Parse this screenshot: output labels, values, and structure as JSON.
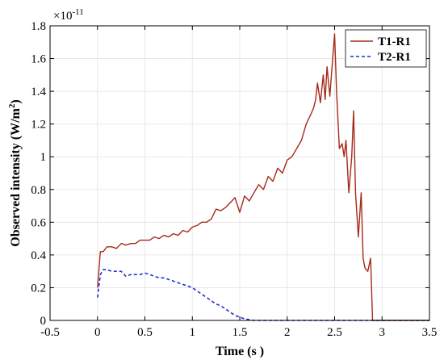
{
  "chart_data": {
    "type": "line",
    "xlabel": "Time (s )",
    "ylabel_main": "Observed intensity (W/m",
    "ylabel_sup": "2",
    "ylabel_close": ")",
    "y_multiplier": {
      "base": "×10",
      "exponent": "-11"
    },
    "xlim": [
      -0.5,
      3.5
    ],
    "ylim": [
      0,
      1.8
    ],
    "x_ticks": [
      -0.5,
      0,
      0.5,
      1,
      1.5,
      2,
      2.5,
      3,
      3.5
    ],
    "y_ticks": [
      0,
      0.2,
      0.4,
      0.6,
      0.8,
      1,
      1.2,
      1.4,
      1.6,
      1.8
    ],
    "x_tick_labels": [
      "-0.5",
      "0",
      "0.5",
      "1",
      "1.5",
      "2",
      "2.5",
      "3",
      "3.5"
    ],
    "y_tick_labels": [
      "0",
      "0.2",
      "0.4",
      "0.6",
      "0.8",
      "1",
      "1.2",
      "1.4",
      "1.6",
      "1.8"
    ],
    "grid": true,
    "legend_position": "top-right",
    "series": [
      {
        "name": "T1-R1",
        "color": "#a52a1a",
        "dash": "solid",
        "x": [
          0,
          0.03,
          0.06,
          0.1,
          0.15,
          0.2,
          0.25,
          0.3,
          0.35,
          0.4,
          0.45,
          0.5,
          0.55,
          0.6,
          0.65,
          0.7,
          0.75,
          0.8,
          0.85,
          0.9,
          0.95,
          1.0,
          1.05,
          1.1,
          1.15,
          1.2,
          1.25,
          1.3,
          1.35,
          1.4,
          1.45,
          1.5,
          1.55,
          1.6,
          1.65,
          1.7,
          1.75,
          1.8,
          1.85,
          1.9,
          1.95,
          2.0,
          2.05,
          2.1,
          2.15,
          2.2,
          2.25,
          2.28,
          2.3,
          2.32,
          2.35,
          2.38,
          2.4,
          2.42,
          2.45,
          2.48,
          2.5,
          2.52,
          2.55,
          2.58,
          2.6,
          2.62,
          2.65,
          2.68,
          2.7,
          2.72,
          2.75,
          2.78,
          2.8,
          2.82,
          2.85,
          2.88,
          2.9,
          2.93,
          2.96,
          3.0,
          3.02,
          3.05,
          3.5
        ],
        "y": [
          0.2,
          0.42,
          0.42,
          0.45,
          0.45,
          0.44,
          0.47,
          0.46,
          0.47,
          0.47,
          0.49,
          0.49,
          0.49,
          0.51,
          0.5,
          0.52,
          0.51,
          0.53,
          0.52,
          0.55,
          0.54,
          0.57,
          0.58,
          0.6,
          0.6,
          0.62,
          0.68,
          0.67,
          0.69,
          0.72,
          0.75,
          0.66,
          0.76,
          0.73,
          0.78,
          0.83,
          0.8,
          0.88,
          0.85,
          0.93,
          0.9,
          0.98,
          1.0,
          1.05,
          1.1,
          1.2,
          1.26,
          1.3,
          1.35,
          1.45,
          1.33,
          1.5,
          1.35,
          1.55,
          1.37,
          1.6,
          1.75,
          1.4,
          1.05,
          1.08,
          1.0,
          1.1,
          0.78,
          1.0,
          1.28,
          0.78,
          0.51,
          0.78,
          0.38,
          0.32,
          0.3,
          0.38,
          0.0,
          0.0,
          0.0,
          0.0,
          0.0,
          0.0,
          0.0
        ]
      },
      {
        "name": "T2-R1",
        "color": "#1f2fd6",
        "dash": "dashed",
        "x": [
          0,
          0.03,
          0.06,
          0.1,
          0.15,
          0.2,
          0.25,
          0.3,
          0.35,
          0.4,
          0.45,
          0.5,
          0.55,
          0.6,
          0.65,
          0.7,
          0.75,
          0.8,
          0.85,
          0.9,
          0.95,
          1.0,
          1.05,
          1.1,
          1.15,
          1.2,
          1.25,
          1.3,
          1.35,
          1.4,
          1.45,
          1.5,
          1.55,
          1.6,
          1.65,
          1.7,
          1.8,
          2.0,
          2.5,
          3.0,
          3.5
        ],
        "y": [
          0.14,
          0.28,
          0.31,
          0.31,
          0.3,
          0.3,
          0.3,
          0.27,
          0.28,
          0.28,
          0.28,
          0.29,
          0.28,
          0.27,
          0.26,
          0.26,
          0.25,
          0.24,
          0.23,
          0.22,
          0.21,
          0.2,
          0.18,
          0.16,
          0.14,
          0.12,
          0.1,
          0.09,
          0.07,
          0.05,
          0.03,
          0.02,
          0.01,
          0.005,
          0.0,
          0.0,
          0.0,
          0.0,
          0.0,
          0.0,
          0.0
        ]
      }
    ]
  }
}
